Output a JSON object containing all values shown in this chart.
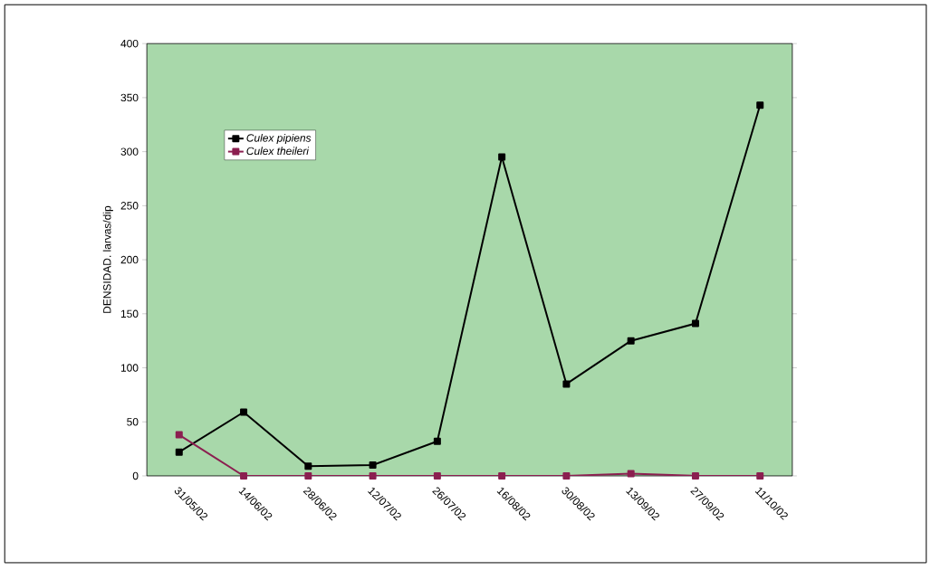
{
  "chart_data": {
    "type": "line",
    "ylabel": "DENSIDAD. larvas/dip",
    "categories": [
      "31/05/02",
      "14/06/02",
      "28/06/02",
      "12/07/02",
      "26/07/02",
      "16/08/02",
      "30/08/02",
      "13/09/02",
      "27/09/02",
      "11/10/02"
    ],
    "series": [
      {
        "name": "Culex pipiens",
        "color": "#000000",
        "values": [
          22,
          59,
          9,
          10,
          32,
          295,
          85,
          125,
          141,
          343
        ]
      },
      {
        "name": "Culex theileri",
        "color": "#8b1f50",
        "values": [
          38,
          0,
          0,
          0,
          0,
          0,
          0,
          2,
          0,
          0
        ]
      }
    ],
    "ylim": [
      0,
      400
    ],
    "yticks": [
      0,
      50,
      100,
      150,
      200,
      250,
      300,
      350,
      400
    ],
    "grid": false,
    "legend": "top left",
    "marker": "square",
    "line_style": "solid"
  }
}
